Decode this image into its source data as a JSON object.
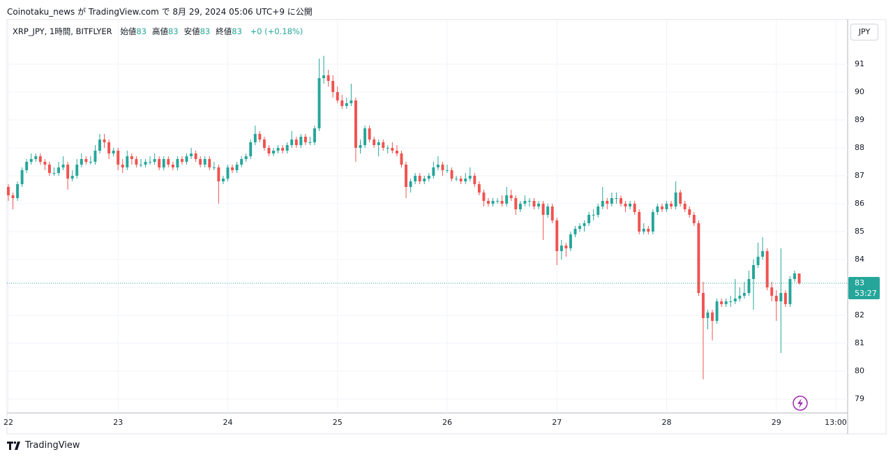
{
  "header": {
    "published": "Coinotaku_news が TradingView.com で 8月 29, 2024 05:06 UTC+9 に公開"
  },
  "legend": {
    "symbol": "XRP_JPY, 1時間, BITFLYER",
    "items": [
      {
        "label": "始値",
        "value": 83
      },
      {
        "label": "高値",
        "value": 83
      },
      {
        "label": "安値",
        "value": 83
      },
      {
        "label": "終値",
        "value": 83
      }
    ],
    "change": "+0 (+0.18%)"
  },
  "currency": "JPY",
  "logo": "TradingView",
  "chart_data": {
    "type": "candlestick",
    "up_color": "#26a69a",
    "down_color": "#ef5350",
    "grid": true,
    "xlim": [
      -0.3,
      183.6
    ],
    "ylim": [
      78.5,
      92.6
    ],
    "xticks": [
      {
        "value": 0,
        "label": "22"
      },
      {
        "value": 24,
        "label": "23"
      },
      {
        "value": 48,
        "label": "24"
      },
      {
        "value": 72,
        "label": "25"
      },
      {
        "value": 96,
        "label": "26"
      },
      {
        "value": 120,
        "label": "27"
      },
      {
        "value": 144,
        "label": "28"
      },
      {
        "value": 168,
        "label": "29"
      },
      {
        "value": 181,
        "label": "13:00"
      }
    ],
    "yticks": [
      79,
      80,
      81,
      82,
      83,
      84,
      85,
      86,
      87,
      88,
      89,
      90,
      91
    ],
    "price_line": 83.15,
    "price_label": "83",
    "countdown": "53:27",
    "candles": [
      [
        86.6,
        86.7,
        86.1,
        86.3
      ],
      [
        86.3,
        86.4,
        85.8,
        86.2
      ],
      [
        86.2,
        86.8,
        86.1,
        86.7
      ],
      [
        86.7,
        87.3,
        86.6,
        87.2
      ],
      [
        87.2,
        87.6,
        87.1,
        87.5
      ],
      [
        87.5,
        87.8,
        87.4,
        87.6
      ],
      [
        87.6,
        87.8,
        87.5,
        87.7
      ],
      [
        87.7,
        87.8,
        87.4,
        87.5
      ],
      [
        87.5,
        87.6,
        87.2,
        87.4
      ],
      [
        87.4,
        87.5,
        87.0,
        87.1
      ],
      [
        87.1,
        87.3,
        87.0,
        87.1
      ],
      [
        87.1,
        87.5,
        87.0,
        87.3
      ],
      [
        87.3,
        87.7,
        87.2,
        87.4
      ],
      [
        87.4,
        87.5,
        86.5,
        86.9
      ],
      [
        86.9,
        87.2,
        86.8,
        87.0
      ],
      [
        87.0,
        87.6,
        86.9,
        87.4
      ],
      [
        87.4,
        87.8,
        87.3,
        87.6
      ],
      [
        87.6,
        87.7,
        87.4,
        87.5
      ],
      [
        87.5,
        87.7,
        87.4,
        87.5
      ],
      [
        87.5,
        88.1,
        87.4,
        87.9
      ],
      [
        87.9,
        88.5,
        87.8,
        88.3
      ],
      [
        88.3,
        88.5,
        88.0,
        88.2
      ],
      [
        88.2,
        88.3,
        87.6,
        87.8
      ],
      [
        87.8,
        88.0,
        87.7,
        87.9
      ],
      [
        87.9,
        88.0,
        87.2,
        87.4
      ],
      [
        87.4,
        87.6,
        87.1,
        87.3
      ],
      [
        87.3,
        87.9,
        87.2,
        87.7
      ],
      [
        87.7,
        87.8,
        87.4,
        87.6
      ],
      [
        87.6,
        87.7,
        87.3,
        87.4
      ],
      [
        87.4,
        87.6,
        87.3,
        87.4
      ],
      [
        87.4,
        87.6,
        87.3,
        87.5
      ],
      [
        87.5,
        87.7,
        87.4,
        87.5
      ],
      [
        87.5,
        87.8,
        87.4,
        87.6
      ],
      [
        87.6,
        87.7,
        87.2,
        87.3
      ],
      [
        87.3,
        87.7,
        87.2,
        87.6
      ],
      [
        87.6,
        87.7,
        87.3,
        87.4
      ],
      [
        87.4,
        87.5,
        87.2,
        87.3
      ],
      [
        87.3,
        87.7,
        87.2,
        87.6
      ],
      [
        87.6,
        87.7,
        87.4,
        87.5
      ],
      [
        87.5,
        87.8,
        87.4,
        87.7
      ],
      [
        87.7,
        88.0,
        87.6,
        87.8
      ],
      [
        87.8,
        87.9,
        87.5,
        87.6
      ],
      [
        87.6,
        87.7,
        87.3,
        87.4
      ],
      [
        87.4,
        87.7,
        87.3,
        87.6
      ],
      [
        87.6,
        87.7,
        87.2,
        87.3
      ],
      [
        87.3,
        87.5,
        87.2,
        87.3
      ],
      [
        87.3,
        87.4,
        86.0,
        86.8
      ],
      [
        86.8,
        87.0,
        86.7,
        86.9
      ],
      [
        86.9,
        87.4,
        86.8,
        87.3
      ],
      [
        87.3,
        87.4,
        87.1,
        87.2
      ],
      [
        87.2,
        87.5,
        87.1,
        87.4
      ],
      [
        87.4,
        87.7,
        87.3,
        87.6
      ],
      [
        87.6,
        87.8,
        87.5,
        87.7
      ],
      [
        87.7,
        88.3,
        87.6,
        88.2
      ],
      [
        88.2,
        88.8,
        88.1,
        88.5
      ],
      [
        88.5,
        88.6,
        88.2,
        88.3
      ],
      [
        88.3,
        88.4,
        87.9,
        88.0
      ],
      [
        88.0,
        88.1,
        87.7,
        87.8
      ],
      [
        87.8,
        88.0,
        87.7,
        87.9
      ],
      [
        87.9,
        88.1,
        87.8,
        88.0
      ],
      [
        88.0,
        88.1,
        87.8,
        87.9
      ],
      [
        87.9,
        88.2,
        87.8,
        88.1
      ],
      [
        88.1,
        88.6,
        88.0,
        88.3
      ],
      [
        88.3,
        88.4,
        88.0,
        88.1
      ],
      [
        88.1,
        88.5,
        88.0,
        88.4
      ],
      [
        88.4,
        88.5,
        88.1,
        88.2
      ],
      [
        88.2,
        88.4,
        88.1,
        88.2
      ],
      [
        88.2,
        88.8,
        88.1,
        88.7
      ],
      [
        88.7,
        91.2,
        88.6,
        90.5
      ],
      [
        90.5,
        91.3,
        90.3,
        90.6
      ],
      [
        90.6,
        90.8,
        90.2,
        90.4
      ],
      [
        90.4,
        90.6,
        89.8,
        90.0
      ],
      [
        90.0,
        90.2,
        89.6,
        89.7
      ],
      [
        89.7,
        89.9,
        89.4,
        89.5
      ],
      [
        89.5,
        89.8,
        89.4,
        89.6
      ],
      [
        89.6,
        90.3,
        89.5,
        89.7
      ],
      [
        89.7,
        89.8,
        87.5,
        88.0
      ],
      [
        88.0,
        88.3,
        87.8,
        88.1
      ],
      [
        88.1,
        88.8,
        88.0,
        88.7
      ],
      [
        88.7,
        88.8,
        88.2,
        88.3
      ],
      [
        88.3,
        88.4,
        88.0,
        88.1
      ],
      [
        88.1,
        88.3,
        87.7,
        88.2
      ],
      [
        88.2,
        88.3,
        87.9,
        88.0
      ],
      [
        88.0,
        88.1,
        87.8,
        88.0
      ],
      [
        88.0,
        88.2,
        87.8,
        87.9
      ],
      [
        87.9,
        88.1,
        87.7,
        87.8
      ],
      [
        87.8,
        87.9,
        87.3,
        87.4
      ],
      [
        87.4,
        87.5,
        86.2,
        86.6
      ],
      [
        86.6,
        86.9,
        86.4,
        86.8
      ],
      [
        86.8,
        87.1,
        86.7,
        87.0
      ],
      [
        87.0,
        87.1,
        86.7,
        86.8
      ],
      [
        86.8,
        87.0,
        86.7,
        86.9
      ],
      [
        86.9,
        87.1,
        86.8,
        87.0
      ],
      [
        87.0,
        87.5,
        86.9,
        87.3
      ],
      [
        87.3,
        87.7,
        87.2,
        87.4
      ],
      [
        87.4,
        87.5,
        87.0,
        87.2
      ],
      [
        87.2,
        87.4,
        87.1,
        87.2
      ],
      [
        87.2,
        87.3,
        86.8,
        86.9
      ],
      [
        86.9,
        87.0,
        86.8,
        86.9
      ],
      [
        86.9,
        87.0,
        86.7,
        86.8
      ],
      [
        86.8,
        87.1,
        86.7,
        86.9
      ],
      [
        86.9,
        87.3,
        86.8,
        87.0
      ],
      [
        87.0,
        87.1,
        86.6,
        86.7
      ],
      [
        86.7,
        86.8,
        86.3,
        86.4
      ],
      [
        86.4,
        86.5,
        85.9,
        86.1
      ],
      [
        86.1,
        86.2,
        85.9,
        86.0
      ],
      [
        86.0,
        86.2,
        85.9,
        86.1
      ],
      [
        86.1,
        86.2,
        86.0,
        86.1
      ],
      [
        86.1,
        86.3,
        85.9,
        86.0
      ],
      [
        86.0,
        86.6,
        85.9,
        86.3
      ],
      [
        86.3,
        86.5,
        86.1,
        86.2
      ],
      [
        86.2,
        86.3,
        85.6,
        85.8
      ],
      [
        85.8,
        86.1,
        85.7,
        86.0
      ],
      [
        86.0,
        86.3,
        85.9,
        86.1
      ],
      [
        86.1,
        86.2,
        85.9,
        86.1
      ],
      [
        86.1,
        86.2,
        85.8,
        85.9
      ],
      [
        85.9,
        86.1,
        85.8,
        86.0
      ],
      [
        86.0,
        86.1,
        84.7,
        85.6
      ],
      [
        85.6,
        86.0,
        85.5,
        85.9
      ],
      [
        85.9,
        86.0,
        85.3,
        85.4
      ],
      [
        85.4,
        85.5,
        83.8,
        84.3
      ],
      [
        84.3,
        84.7,
        84.0,
        84.5
      ],
      [
        84.5,
        84.6,
        84.1,
        84.4
      ],
      [
        84.4,
        85.0,
        84.3,
        84.9
      ],
      [
        84.9,
        85.2,
        84.8,
        85.1
      ],
      [
        85.1,
        85.3,
        85.0,
        85.2
      ],
      [
        85.2,
        85.4,
        85.0,
        85.3
      ],
      [
        85.3,
        85.7,
        85.2,
        85.6
      ],
      [
        85.6,
        85.8,
        85.4,
        85.6
      ],
      [
        85.6,
        86.0,
        85.5,
        85.9
      ],
      [
        85.9,
        86.6,
        85.8,
        86.1
      ],
      [
        86.1,
        86.2,
        85.8,
        86.0
      ],
      [
        86.0,
        86.4,
        85.9,
        86.2
      ],
      [
        86.2,
        86.4,
        86.0,
        86.2
      ],
      [
        86.2,
        86.3,
        85.9,
        86.0
      ],
      [
        86.0,
        86.1,
        85.7,
        85.9
      ],
      [
        85.9,
        86.1,
        85.8,
        86.0
      ],
      [
        86.0,
        86.1,
        85.6,
        85.7
      ],
      [
        85.7,
        85.8,
        84.9,
        85.0
      ],
      [
        85.0,
        85.3,
        84.9,
        85.1
      ],
      [
        85.1,
        85.2,
        84.9,
        85.0
      ],
      [
        85.0,
        85.8,
        84.9,
        85.7
      ],
      [
        85.7,
        86.0,
        85.6,
        85.9
      ],
      [
        85.9,
        86.0,
        85.7,
        85.8
      ],
      [
        85.8,
        86.1,
        85.7,
        86.0
      ],
      [
        86.0,
        86.1,
        85.8,
        85.9
      ],
      [
        85.9,
        86.8,
        85.8,
        86.4
      ],
      [
        86.4,
        86.5,
        85.9,
        86.0
      ],
      [
        86.0,
        86.1,
        85.7,
        85.8
      ],
      [
        85.8,
        85.9,
        85.5,
        85.6
      ],
      [
        85.6,
        85.7,
        85.2,
        85.3
      ],
      [
        85.3,
        85.4,
        82.7,
        82.8
      ],
      [
        82.8,
        83.2,
        79.7,
        81.9
      ],
      [
        81.9,
        82.2,
        81.5,
        82.1
      ],
      [
        82.1,
        82.2,
        81.1,
        81.8
      ],
      [
        81.8,
        82.6,
        81.7,
        82.5
      ],
      [
        82.5,
        82.6,
        82.3,
        82.4
      ],
      [
        82.4,
        82.6,
        82.3,
        82.5
      ],
      [
        82.5,
        82.7,
        82.3,
        82.5
      ],
      [
        82.5,
        83.3,
        82.4,
        82.6
      ],
      [
        82.6,
        83.0,
        82.5,
        82.7
      ],
      [
        82.7,
        83.2,
        82.6,
        82.8
      ],
      [
        82.8,
        83.6,
        82.7,
        83.3
      ],
      [
        83.3,
        84.0,
        82.2,
        83.8
      ],
      [
        83.8,
        84.6,
        83.7,
        84.1
      ],
      [
        84.1,
        84.8,
        84.0,
        84.3
      ],
      [
        84.3,
        84.4,
        82.9,
        83.0
      ],
      [
        83.0,
        83.2,
        82.5,
        82.7
      ],
      [
        82.7,
        82.9,
        81.8,
        82.5
      ],
      [
        82.5,
        84.4,
        80.65,
        82.8
      ],
      [
        82.8,
        82.9,
        82.3,
        82.4
      ],
      [
        82.4,
        83.4,
        82.3,
        83.3
      ],
      [
        83.3,
        83.6,
        83.2,
        83.5
      ],
      [
        83.5,
        83.5,
        83.1,
        83.15
      ]
    ]
  }
}
